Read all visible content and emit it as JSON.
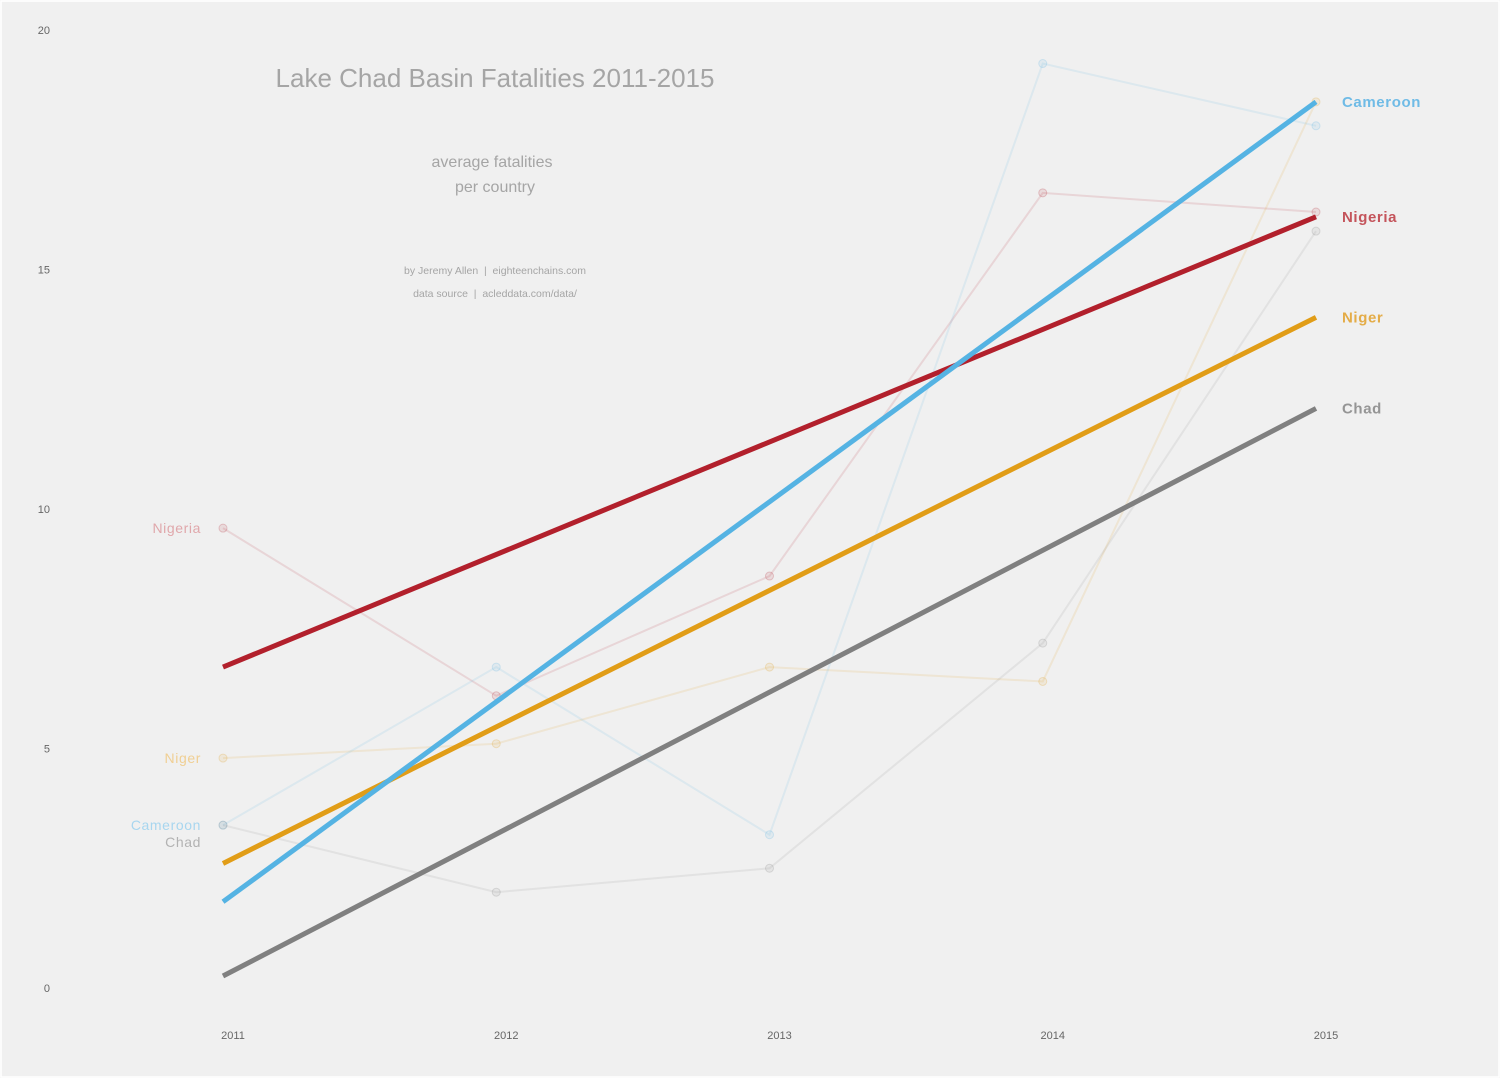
{
  "chart_data": {
    "type": "line",
    "title": "Lake Chad Basin Fatalities 2011-2015",
    "subtitle": [
      "average fatalities",
      "per country"
    ],
    "credits": [
      "by Jeremy Allen  |  eighteenchains.com",
      "data source  |  acleddata.com/data/"
    ],
    "xlabel": "",
    "ylabel": "",
    "x": [
      2011,
      2012,
      2013,
      2014,
      2015
    ],
    "x_ticks": [
      "2011",
      "2012",
      "2013",
      "2014",
      "2015"
    ],
    "y_ticks": [
      "0",
      "5",
      "10",
      "15",
      "20"
    ],
    "xlim": [
      2011,
      2015
    ],
    "ylim": [
      0,
      20
    ],
    "grid": false,
    "series": [
      {
        "name": "Nigeria",
        "color": "#b2202c",
        "values": [
          9.6,
          6.1,
          8.6,
          16.6,
          16.2
        ],
        "trend": [
          6.7,
          16.1
        ]
      },
      {
        "name": "Niger",
        "color": "#e19d17",
        "values": [
          4.8,
          5.1,
          6.7,
          6.4,
          18.5
        ],
        "trend": [
          2.6,
          14.0
        ]
      },
      {
        "name": "Cameroon",
        "color": "#55b3e3",
        "values": [
          3.4,
          6.7,
          3.2,
          19.3,
          18.0
        ],
        "trend": [
          1.8,
          18.5
        ]
      },
      {
        "name": "Chad",
        "color": "#808080",
        "values": [
          3.4,
          2.0,
          2.5,
          7.2,
          15.8
        ],
        "trend": [
          0.25,
          12.1
        ]
      }
    ],
    "start_labels": [
      {
        "series": "Nigeria",
        "text": "Nigeria",
        "color": "#e0a7ab"
      },
      {
        "series": "Niger",
        "text": "Niger",
        "color": "#f0cf93"
      },
      {
        "series": "Cameroon",
        "text": "Cameroon",
        "color": "#a8d6ef"
      },
      {
        "series": "Chad",
        "text": "Chad",
        "color": "#b2b2b2"
      }
    ],
    "end_labels": [
      {
        "series": "Cameroon",
        "text": "Cameroon",
        "color": "#6fbbe6"
      },
      {
        "series": "Nigeria",
        "text": "Nigeria",
        "color": "#c4545b"
      },
      {
        "series": "Niger",
        "text": "Niger",
        "color": "#e4ac47"
      },
      {
        "series": "Chad",
        "text": "Chad",
        "color": "#959595"
      }
    ]
  }
}
